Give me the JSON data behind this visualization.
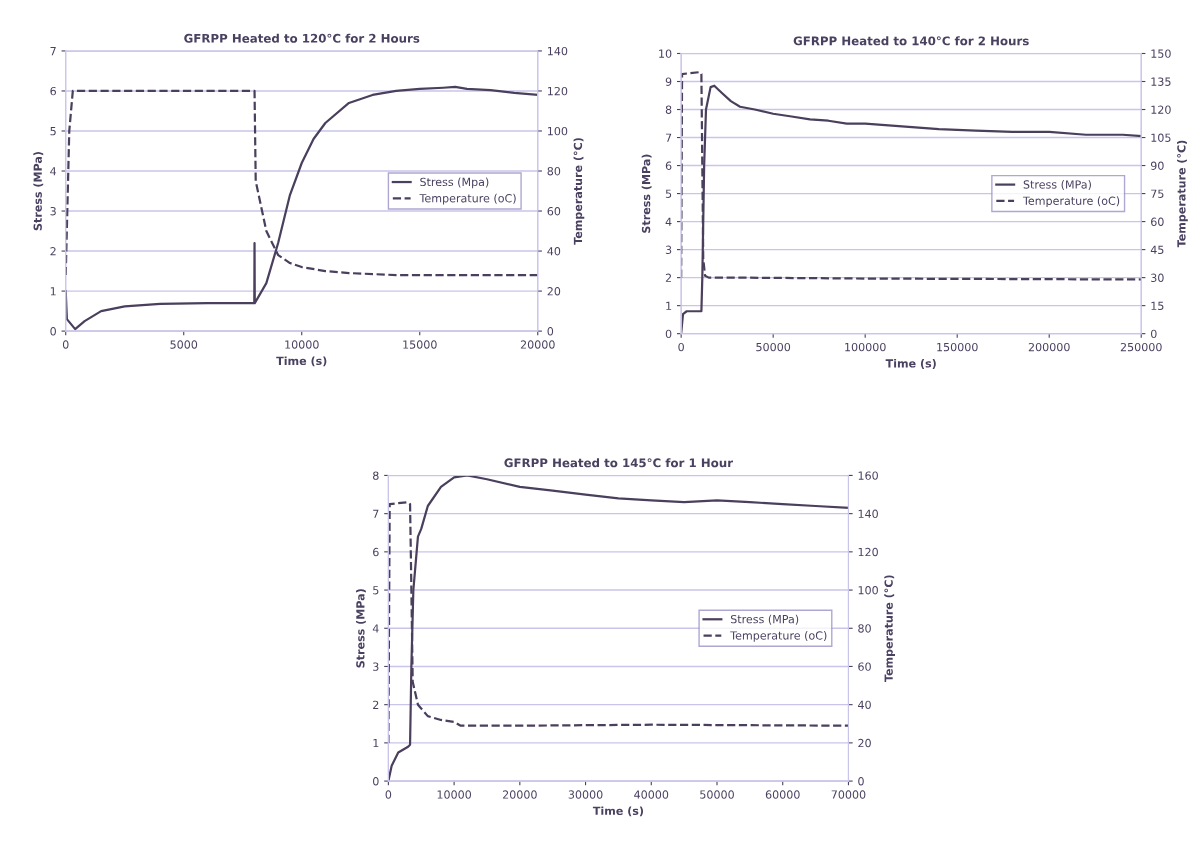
{
  "chart_data": [
    {
      "type": "line",
      "title": "GFRPP Heated to 120°C for 2 Hours",
      "xlabel": "Time (s)",
      "ylabel": "Stress (MPa)",
      "y2label": "Temperature (°C)",
      "xlim": [
        0,
        20000
      ],
      "xticks": [
        0,
        5000,
        10000,
        15000,
        20000
      ],
      "ylim": [
        0,
        7
      ],
      "yticks": [
        0,
        1,
        2,
        3,
        4,
        5,
        6,
        7
      ],
      "y2lim": [
        0,
        140
      ],
      "y2ticks": [
        0,
        20,
        40,
        60,
        80,
        100,
        120,
        140
      ],
      "grid": "y",
      "legend": "center right",
      "series": [
        {
          "name": "Stress (Mpa)",
          "color": "#4a3f5c",
          "line_style": "solid",
          "x": [
            0,
            50,
            400,
            800,
            1500,
            2500,
            4000,
            6000,
            7990,
            8000,
            8010,
            8500,
            9000,
            9500,
            10000,
            10500,
            11000,
            12000,
            13000,
            14000,
            15000,
            16000,
            16500,
            17000,
            18000,
            19000,
            20000
          ],
          "values": [
            1.0,
            0.3,
            0.05,
            0.25,
            0.5,
            0.62,
            0.68,
            0.7,
            0.7,
            2.2,
            0.7,
            1.2,
            2.2,
            3.4,
            4.2,
            4.8,
            5.2,
            5.7,
            5.9,
            6.0,
            6.05,
            6.08,
            6.1,
            6.05,
            6.02,
            5.95,
            5.9
          ]
        },
        {
          "name": "Temperature (oC)",
          "color": "#4a3f5c",
          "line_style": "dashed",
          "axis": "y2",
          "x": [
            0,
            150,
            300,
            8000,
            8050,
            8500,
            9000,
            9500,
            10000,
            11000,
            12000,
            14000,
            20000
          ],
          "values": [
            28,
            100,
            120,
            120,
            75,
            50,
            38,
            34,
            32,
            30,
            29,
            28,
            28
          ]
        }
      ]
    },
    {
      "type": "line",
      "title": "GFRPP Heated to 140°C for 2 Hours",
      "xlabel": "Time (s)",
      "ylabel": "Stress (MPa)",
      "y2label": "Temperature (°C)",
      "xlim": [
        0,
        250000
      ],
      "xticks": [
        0,
        50000,
        100000,
        150000,
        200000,
        250000
      ],
      "ylim": [
        0,
        10
      ],
      "yticks": [
        0,
        1,
        2,
        3,
        4,
        5,
        6,
        7,
        8,
        9,
        10
      ],
      "y2lim": [
        0,
        150
      ],
      "y2ticks": [
        0,
        15,
        30,
        45,
        60,
        75,
        90,
        105,
        120,
        135,
        150
      ],
      "grid": "y",
      "legend": "center right",
      "series": [
        {
          "name": "Stress (MPa)",
          "color": "#4a3f5c",
          "line_style": "solid",
          "x": [
            0,
            1000,
            3000,
            11000,
            11500,
            12500,
            13500,
            16000,
            18000,
            22000,
            27000,
            32000,
            40000,
            50000,
            60000,
            70000,
            80000,
            90000,
            100000,
            120000,
            140000,
            160000,
            180000,
            200000,
            220000,
            240000,
            250000
          ],
          "values": [
            0,
            0.7,
            0.8,
            0.8,
            2,
            6,
            8,
            8.8,
            8.85,
            8.6,
            8.3,
            8.1,
            8.0,
            7.85,
            7.75,
            7.65,
            7.6,
            7.5,
            7.5,
            7.4,
            7.3,
            7.25,
            7.2,
            7.2,
            7.1,
            7.1,
            7.05
          ]
        },
        {
          "name": "Temperature (oC)",
          "color": "#4a3f5c",
          "line_style": "dashed",
          "axis": "y2",
          "x": [
            0,
            500,
            10000,
            11000,
            12000,
            13000,
            15000,
            30000,
            100000,
            250000
          ],
          "values": [
            30,
            139,
            140,
            139,
            40,
            31,
            30,
            30,
            29.5,
            29
          ]
        }
      ]
    },
    {
      "type": "line",
      "title": "GFRPP Heated to 145°C for 1 Hour",
      "xlabel": "Time (s)",
      "ylabel": "Stress (MPa)",
      "y2label": "Temperature (°C)",
      "xlim": [
        0,
        70000
      ],
      "xticks": [
        0,
        10000,
        20000,
        30000,
        40000,
        50000,
        60000,
        70000
      ],
      "ylim": [
        0,
        8
      ],
      "yticks": [
        0,
        1,
        2,
        3,
        4,
        5,
        6,
        7,
        8
      ],
      "y2lim": [
        0,
        160
      ],
      "y2ticks": [
        0,
        20,
        40,
        60,
        80,
        100,
        120,
        140,
        160
      ],
      "grid": "y",
      "legend": "center right",
      "series": [
        {
          "name": "Stress (MPa)",
          "color": "#4a3f5c",
          "line_style": "solid",
          "x": [
            0,
            500,
            1500,
            3000,
            3300,
            3500,
            3800,
            4500,
            5000,
            6000,
            8000,
            10000,
            12000,
            15000,
            20000,
            25000,
            30000,
            35000,
            40000,
            45000,
            50000,
            55000,
            60000,
            65000,
            70000
          ],
          "values": [
            0,
            0.4,
            0.75,
            0.9,
            0.95,
            3,
            5,
            6.4,
            6.6,
            7.2,
            7.7,
            7.95,
            8.0,
            7.9,
            7.7,
            7.6,
            7.5,
            7.4,
            7.35,
            7.3,
            7.35,
            7.3,
            7.25,
            7.2,
            7.15
          ]
        },
        {
          "name": "Temperature (oC)",
          "color": "#4a3f5c",
          "line_style": "dashed",
          "axis": "y2",
          "x": [
            0,
            200,
            3000,
            3300,
            3500,
            3700,
            4500,
            6000,
            8000,
            10000,
            11000,
            20000,
            40000,
            70000
          ],
          "values": [
            20,
            145,
            146,
            145,
            100,
            52,
            40,
            34,
            32,
            31,
            29,
            29,
            29.5,
            29
          ]
        }
      ]
    }
  ]
}
